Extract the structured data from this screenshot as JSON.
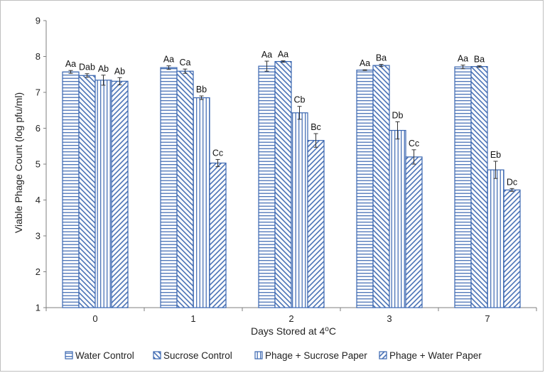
{
  "chart_data": {
    "type": "bar",
    "title": "",
    "xlabel": "Days Stored at 4",
    "xlabel_sup": "o",
    "xlabel_suffix": "C",
    "ylabel": "Viable Phage Count (log pfu/ml)",
    "ylim": [
      1,
      9
    ],
    "yticks": [
      1,
      2,
      3,
      4,
      5,
      6,
      7,
      8,
      9
    ],
    "grid": false,
    "legend_position": "bottom",
    "categories": [
      "0",
      "1",
      "2",
      "3",
      "7"
    ],
    "series": [
      {
        "name": "Water Control",
        "pattern": "horizontal-lines",
        "values": [
          7.57,
          7.69,
          7.73,
          7.62,
          7.71
        ],
        "errors": [
          0.04,
          0.05,
          0.14,
          0.01,
          0.05
        ],
        "labels": [
          "Aa",
          "Aa",
          "Aa",
          "Aa",
          "Aa"
        ]
      },
      {
        "name": "Sucrose Control",
        "pattern": "diagonal-down",
        "values": [
          7.47,
          7.59,
          7.86,
          7.75,
          7.72
        ],
        "errors": [
          0.05,
          0.06,
          0.02,
          0.03,
          0.02
        ],
        "labels": [
          "Dab",
          "Ca",
          "Aa",
          "Ba",
          "Ba"
        ]
      },
      {
        "name": "Phage + Sucrose Paper",
        "pattern": "vertical-lines",
        "values": [
          7.34,
          6.85,
          6.43,
          5.94,
          4.84
        ],
        "errors": [
          0.14,
          0.05,
          0.18,
          0.24,
          0.24
        ],
        "labels": [
          "Ab",
          "Bb",
          "Cb",
          "Db",
          "Eb"
        ]
      },
      {
        "name": "Phage + Water Paper",
        "pattern": "diagonal-up",
        "values": [
          7.31,
          5.03,
          5.66,
          5.2,
          4.28
        ],
        "errors": [
          0.1,
          0.1,
          0.19,
          0.2,
          0.04
        ],
        "labels": [
          "Ab",
          "Cc",
          "Bc",
          "Cc",
          "Dc"
        ]
      }
    ]
  },
  "colors": {
    "bar_stroke": "#3a66b0",
    "bar_fill": "#ffffff",
    "axis": "#7f7f7f",
    "text": "#222222",
    "error_bar": "#333333"
  }
}
